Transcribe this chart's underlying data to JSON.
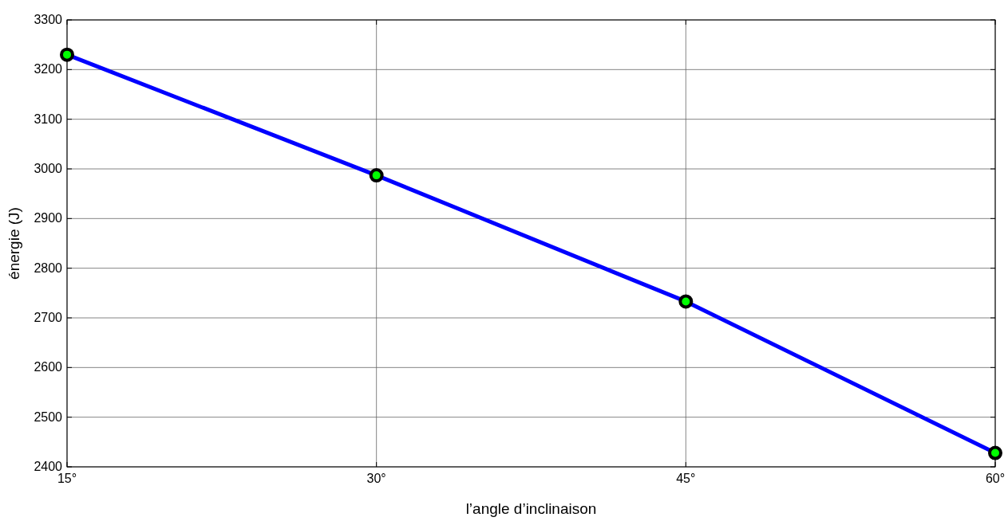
{
  "chart_data": {
    "type": "line",
    "xlabel": "l’angle d’inclinaison",
    "ylabel": "énergie (J)",
    "x": [
      15,
      30,
      45,
      60
    ],
    "series": [
      {
        "color": "#0000ff",
        "values": [
          3230,
          2987,
          2733,
          2428
        ]
      }
    ],
    "xlim": [
      15,
      60
    ],
    "xticks": [
      {
        "value": 15,
        "label": "15°"
      },
      {
        "value": 30,
        "label": "30°"
      },
      {
        "value": 45,
        "label": "45°"
      },
      {
        "value": 60,
        "label": "60°"
      }
    ],
    "ylim": [
      2400,
      3300
    ],
    "yticks": [
      2400,
      2500,
      2600,
      2700,
      2800,
      2900,
      3000,
      3100,
      3200,
      3300
    ],
    "grid": true,
    "marker": "circle",
    "line_style": "solid"
  }
}
